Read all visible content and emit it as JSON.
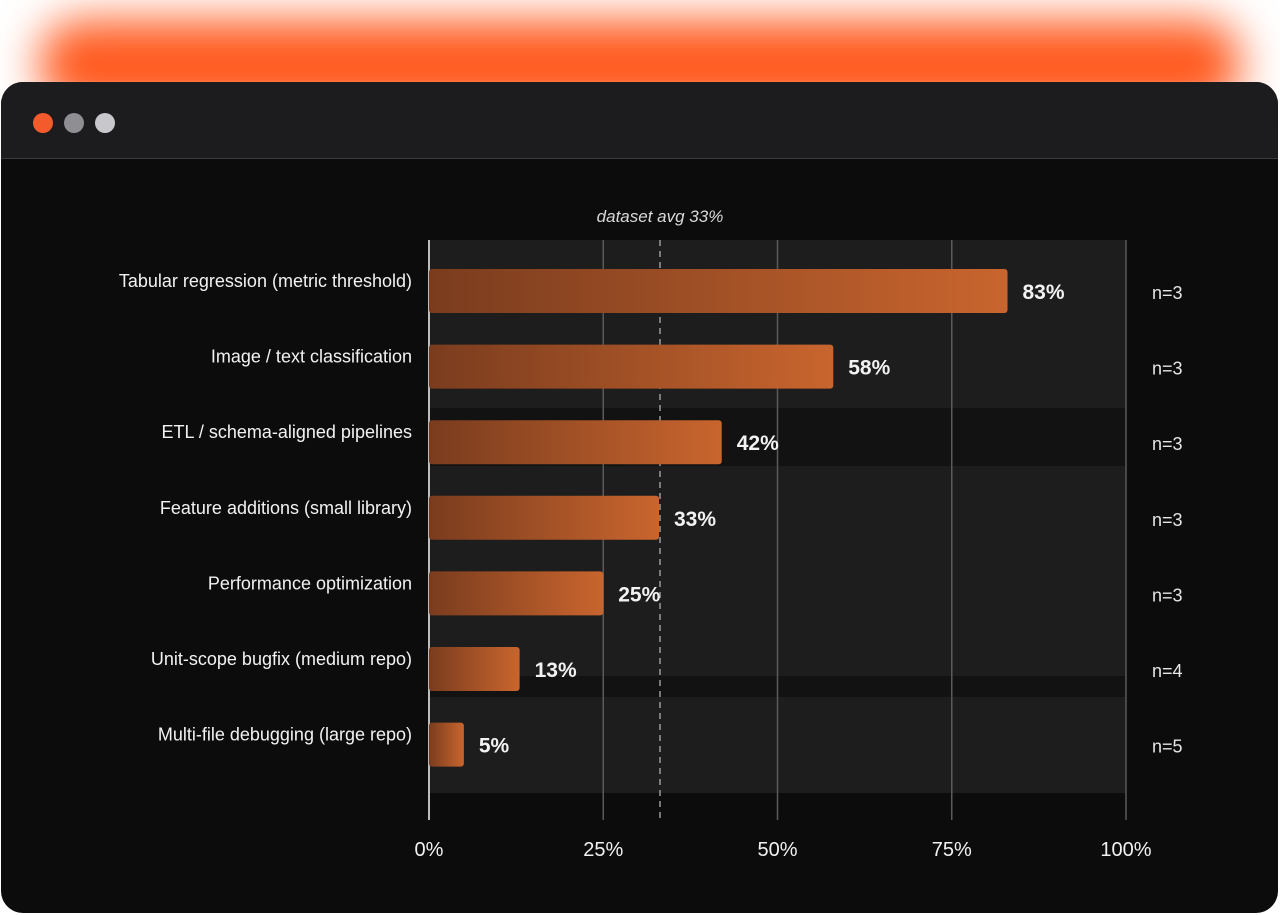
{
  "window": {
    "controls": [
      "close",
      "minimize",
      "maximize"
    ],
    "colors": {
      "close": "#f55a2c",
      "minimize": "#8e8e93",
      "maximize": "#c7c7cc",
      "glow": "#ff5a1f",
      "bar_start": "#7a3c1e",
      "bar_end": "#c9652e"
    }
  },
  "chart_data": {
    "type": "bar",
    "orientation": "horizontal",
    "categories": [
      "Tabular regression (metric threshold)",
      "Image / text classification",
      "ETL / schema-aligned pipelines",
      "Feature additions (small library)",
      "Performance optimization",
      "Unit-scope bugfix (medium repo)",
      "Multi-file debugging (large repo)"
    ],
    "values": [
      83,
      58,
      42,
      33,
      25,
      13,
      5
    ],
    "value_labels": [
      "83%",
      "58%",
      "42%",
      "33%",
      "25%",
      "13%",
      "5%"
    ],
    "n_labels": [
      "n=3",
      "n=3",
      "n=3",
      "n=3",
      "n=3",
      "n=4",
      "n=5"
    ],
    "xlim": [
      0,
      100
    ],
    "x_ticks": [
      0,
      25,
      50,
      75,
      100
    ],
    "x_tick_labels": [
      "0%",
      "25%",
      "50%",
      "75%",
      "100%"
    ],
    "reference_line": {
      "value": 33,
      "label": "dataset avg 33%"
    },
    "grid": true
  }
}
